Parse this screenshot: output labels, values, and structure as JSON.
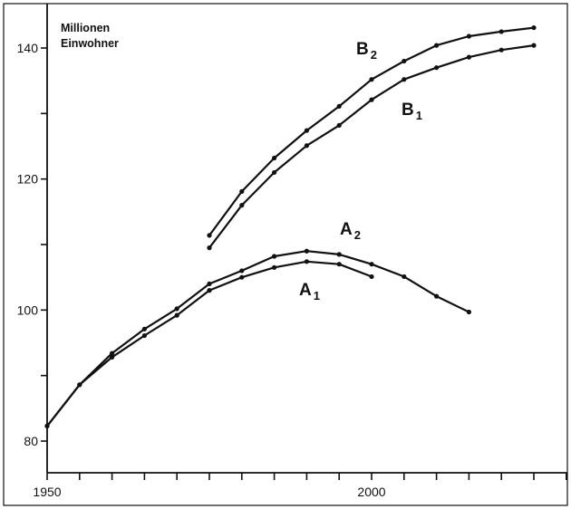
{
  "chart_data": {
    "type": "line",
    "unit_label_lines": [
      "Millionen",
      "Einwohner"
    ],
    "x_ticks": [
      {
        "value": 1950,
        "label": "1950"
      },
      {
        "value": 2000,
        "label": "2000"
      }
    ],
    "y_ticks": [
      {
        "value": 80,
        "label": "80"
      },
      {
        "value": 100,
        "label": "100"
      },
      {
        "value": 120,
        "label": "120"
      },
      {
        "value": 140,
        "label": "140"
      }
    ],
    "xlim": [
      1950,
      2030
    ],
    "ylim": [
      75.5,
      146.5
    ],
    "grid": false,
    "legend": "inline labels near curves",
    "series": [
      {
        "key": "A1",
        "label_main": "A",
        "label_sub": "1",
        "x": [
          1950,
          1955,
          1960,
          1965,
          1970,
          1975,
          1980,
          1985,
          1990,
          1995,
          2000
        ],
        "y": [
          82.3,
          88.6,
          92.8,
          96.1,
          99.2,
          103.0,
          105.0,
          106.5,
          107.4,
          107.0,
          105.1
        ]
      },
      {
        "key": "A2",
        "label_main": "A",
        "label_sub": "2",
        "x": [
          1950,
          1955,
          1960,
          1965,
          1970,
          1975,
          1980,
          1985,
          1990,
          1995,
          2000,
          2005,
          2010,
          2015
        ],
        "y": [
          82.3,
          88.6,
          93.4,
          97.1,
          100.2,
          104.0,
          106.0,
          108.2,
          109.0,
          108.5,
          107.0,
          105.1,
          102.1,
          99.7
        ]
      },
      {
        "key": "B1",
        "label_main": "B",
        "label_sub": "1",
        "x": [
          1975,
          1980,
          1985,
          1990,
          1995,
          2000,
          2005,
          2010,
          2015,
          2020,
          2025
        ],
        "y": [
          109.5,
          116.0,
          121.0,
          125.1,
          128.2,
          132.1,
          135.2,
          137.0,
          138.6,
          139.7,
          140.4
        ]
      },
      {
        "key": "B2",
        "label_main": "B",
        "label_sub": "2",
        "x": [
          1975,
          1980,
          1985,
          1990,
          1995,
          2000,
          2005,
          2010,
          2015,
          2020,
          2025
        ],
        "y": [
          111.4,
          118.1,
          123.2,
          127.4,
          131.1,
          135.2,
          138.0,
          140.4,
          141.8,
          142.5,
          143.1
        ]
      }
    ]
  }
}
